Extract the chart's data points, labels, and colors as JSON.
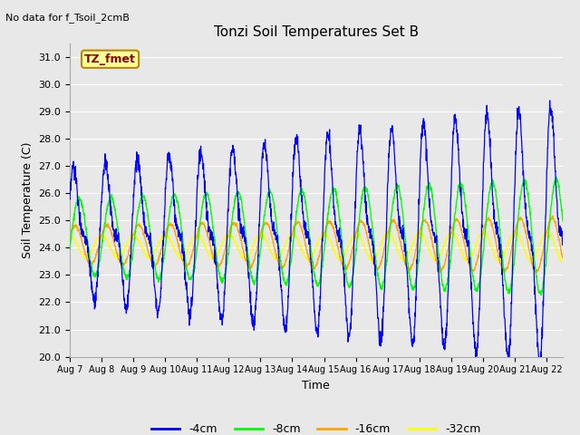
{
  "title": "Tonzi Soil Temperatures Set B",
  "xlabel": "Time",
  "ylabel": "Soil Temperature (C)",
  "suptitle": "No data for f_Tsoil_2cmB",
  "tz_label": "TZ_fmet",
  "ylim": [
    20.0,
    31.5
  ],
  "yticks": [
    20.0,
    21.0,
    22.0,
    23.0,
    24.0,
    25.0,
    26.0,
    27.0,
    28.0,
    29.0,
    30.0,
    31.0
  ],
  "xtick_labels": [
    "Aug 7",
    "Aug 8",
    "Aug 9",
    "Aug 10",
    "Aug 11",
    "Aug 12",
    "Aug 13",
    "Aug 14",
    "Aug 15",
    "Aug 16",
    "Aug 17",
    "Aug 18",
    "Aug 19",
    "Aug 20",
    "Aug 21",
    "Aug 22"
  ],
  "colors": {
    "4cm": "#0000FF",
    "8cm": "#00FF00",
    "16cm": "#FFA500",
    "32cm": "#FFFF00"
  },
  "legend_labels": [
    "-4cm",
    "-8cm",
    "-16cm",
    "-32cm"
  ],
  "bg_color": "#E8E8E8",
  "plot_bg": "#E8E8E8",
  "grid_color": "#FFFFFF",
  "num_days": 15.5,
  "num_points": 2000
}
